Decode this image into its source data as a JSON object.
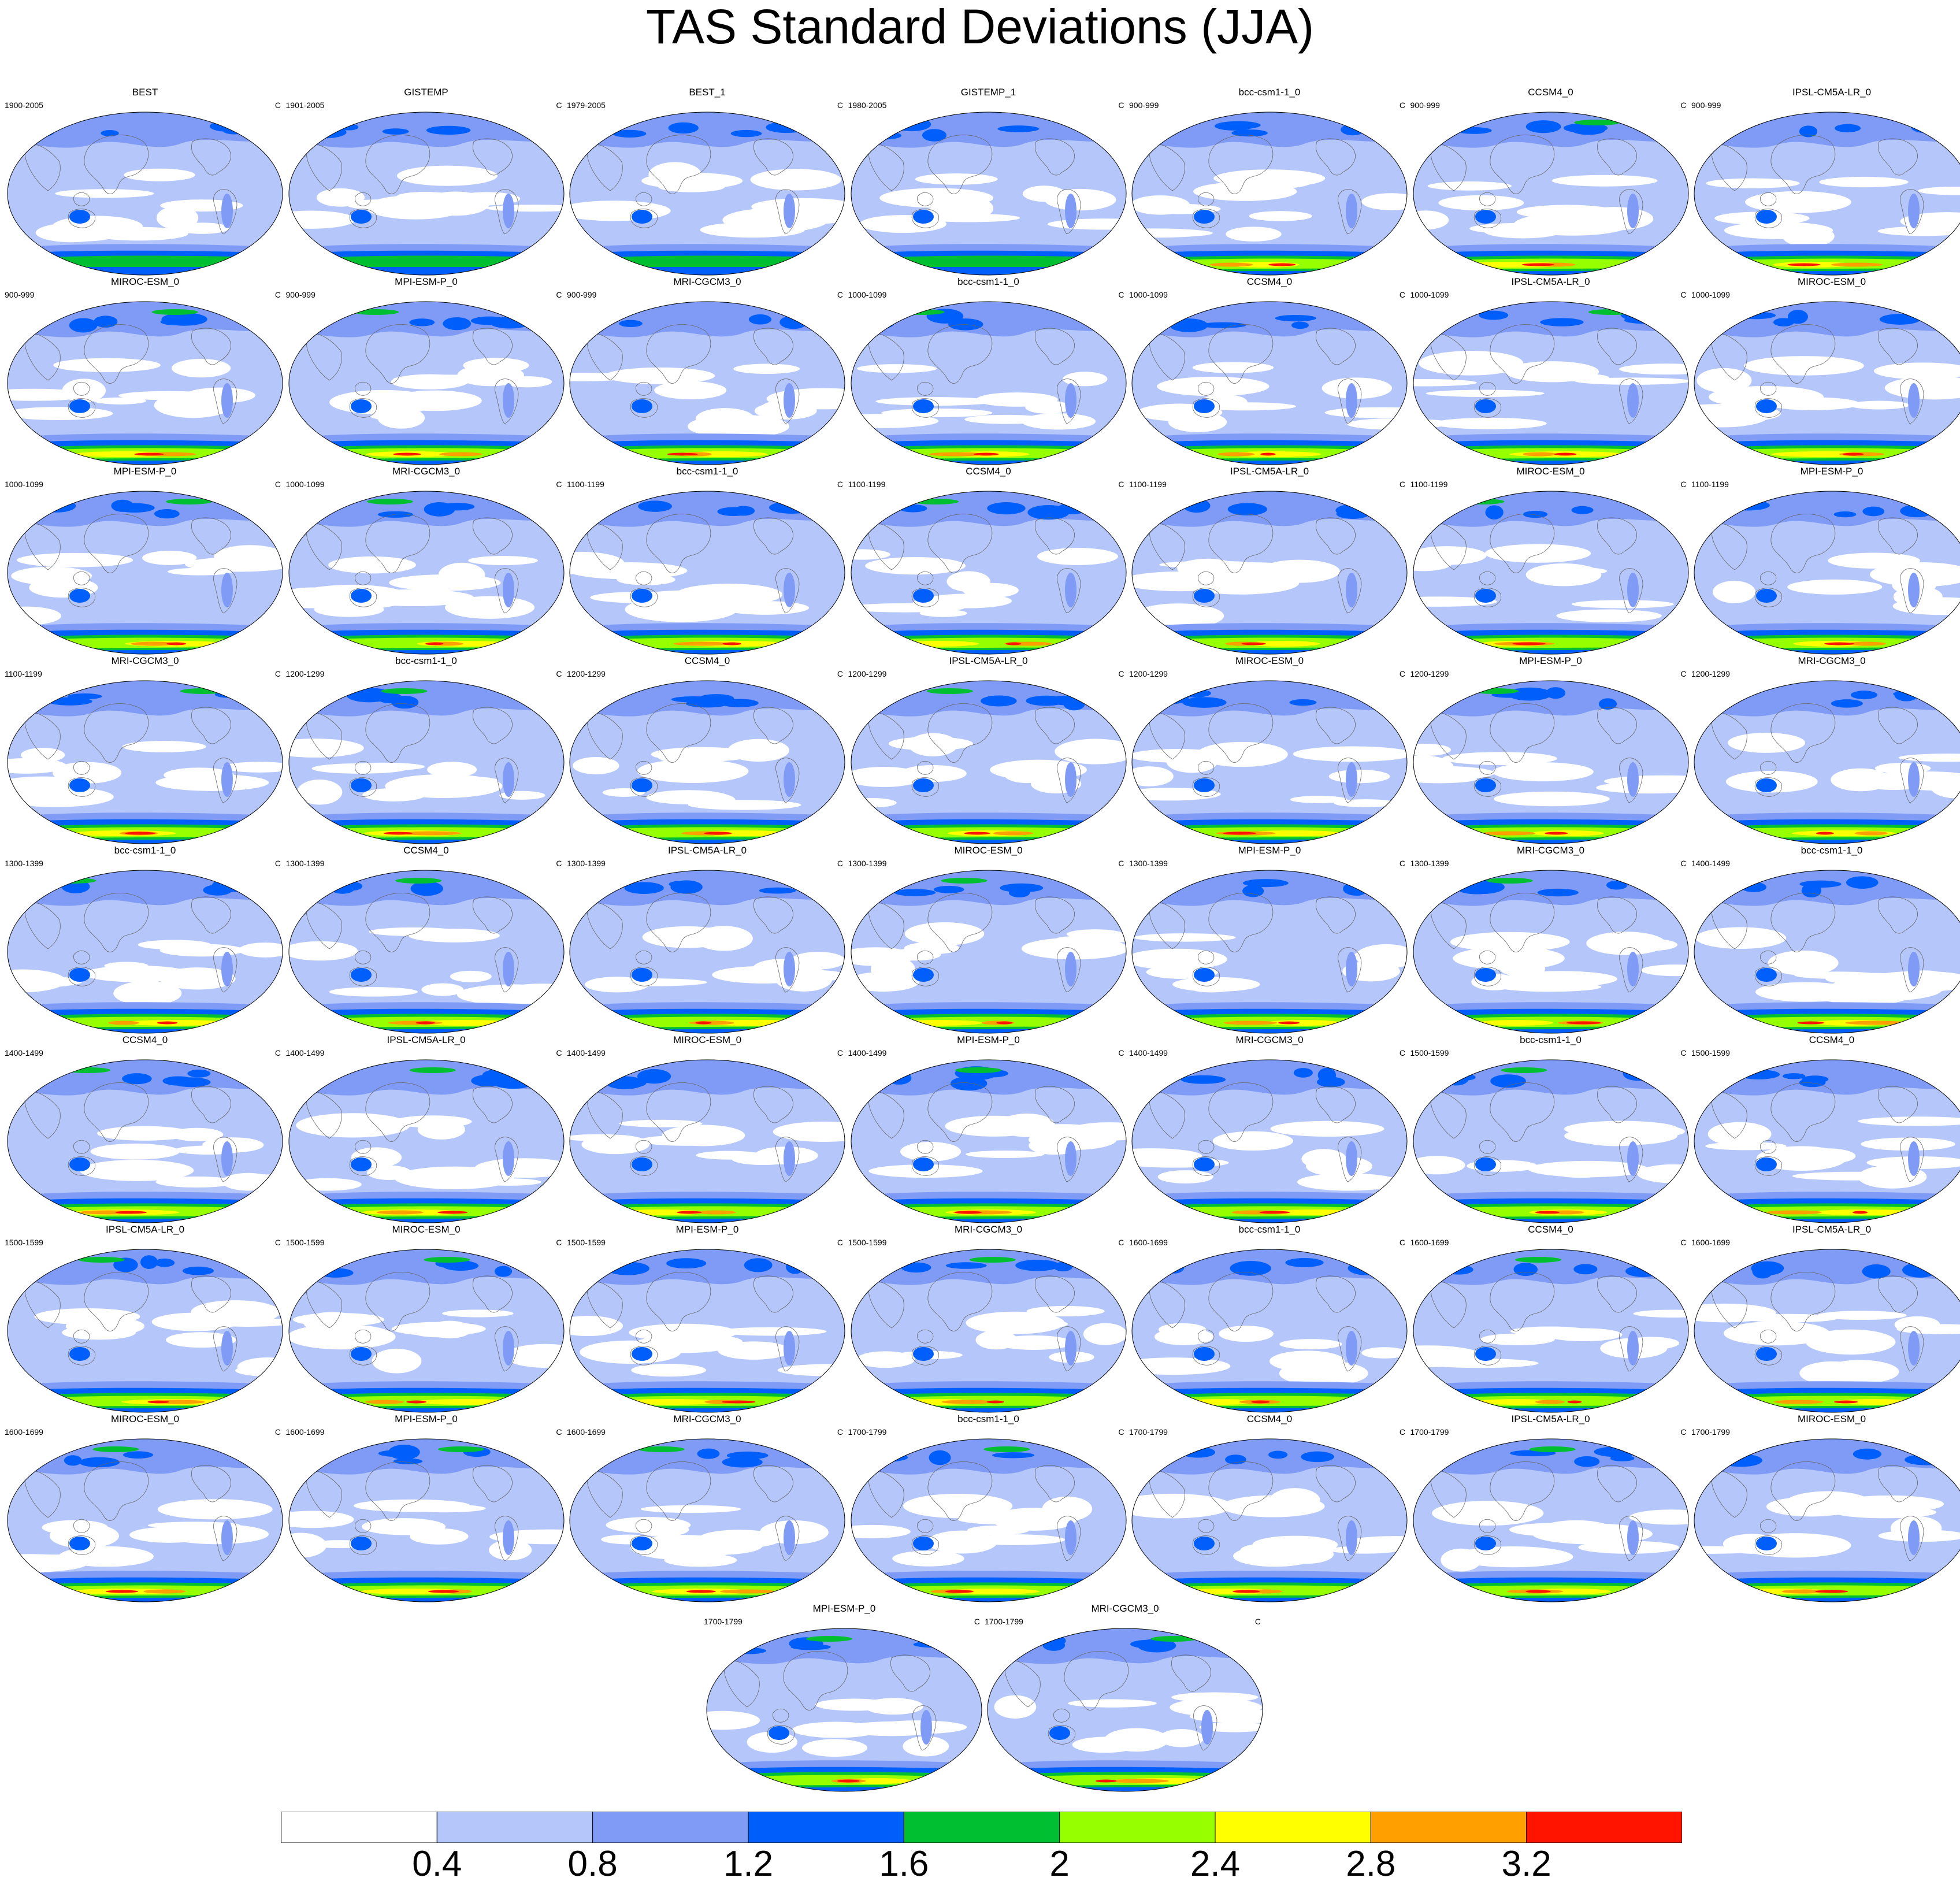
{
  "title": "TAS Standard Deviations (JJA)",
  "units_label": "C",
  "panels": [
    {
      "name": "BEST",
      "period": "1900-2005"
    },
    {
      "name": "GISTEMP",
      "period": "1901-2005"
    },
    {
      "name": "BEST_1",
      "period": "1979-2005"
    },
    {
      "name": "GISTEMP_1",
      "period": "1980-2005"
    },
    {
      "name": "bcc-csm1-1_0",
      "period": "900-999"
    },
    {
      "name": "CCSM4_0",
      "period": "900-999"
    },
    {
      "name": "IPSL-CM5A-LR_0",
      "period": "900-999"
    },
    {
      "name": "MIROC-ESM_0",
      "period": "900-999"
    },
    {
      "name": "MPI-ESM-P_0",
      "period": "900-999"
    },
    {
      "name": "MRI-CGCM3_0",
      "period": "900-999"
    },
    {
      "name": "bcc-csm1-1_0",
      "period": "1000-1099"
    },
    {
      "name": "CCSM4_0",
      "period": "1000-1099"
    },
    {
      "name": "IPSL-CM5A-LR_0",
      "period": "1000-1099"
    },
    {
      "name": "MIROC-ESM_0",
      "period": "1000-1099"
    },
    {
      "name": "MPI-ESM-P_0",
      "period": "1000-1099"
    },
    {
      "name": "MRI-CGCM3_0",
      "period": "1000-1099"
    },
    {
      "name": "bcc-csm1-1_0",
      "period": "1100-1199"
    },
    {
      "name": "CCSM4_0",
      "period": "1100-1199"
    },
    {
      "name": "IPSL-CM5A-LR_0",
      "period": "1100-1199"
    },
    {
      "name": "MIROC-ESM_0",
      "period": "1100-1199"
    },
    {
      "name": "MPI-ESM-P_0",
      "period": "1100-1199"
    },
    {
      "name": "MRI-CGCM3_0",
      "period": "1100-1199"
    },
    {
      "name": "bcc-csm1-1_0",
      "period": "1200-1299"
    },
    {
      "name": "CCSM4_0",
      "period": "1200-1299"
    },
    {
      "name": "IPSL-CM5A-LR_0",
      "period": "1200-1299"
    },
    {
      "name": "MIROC-ESM_0",
      "period": "1200-1299"
    },
    {
      "name": "MPI-ESM-P_0",
      "period": "1200-1299"
    },
    {
      "name": "MRI-CGCM3_0",
      "period": "1200-1299"
    },
    {
      "name": "bcc-csm1-1_0",
      "period": "1300-1399"
    },
    {
      "name": "CCSM4_0",
      "period": "1300-1399"
    },
    {
      "name": "IPSL-CM5A-LR_0",
      "period": "1300-1399"
    },
    {
      "name": "MIROC-ESM_0",
      "period": "1300-1399"
    },
    {
      "name": "MPI-ESM-P_0",
      "period": "1300-1399"
    },
    {
      "name": "MRI-CGCM3_0",
      "period": "1300-1399"
    },
    {
      "name": "bcc-csm1-1_0",
      "period": "1400-1499"
    },
    {
      "name": "CCSM4_0",
      "period": "1400-1499"
    },
    {
      "name": "IPSL-CM5A-LR_0",
      "period": "1400-1499"
    },
    {
      "name": "MIROC-ESM_0",
      "period": "1400-1499"
    },
    {
      "name": "MPI-ESM-P_0",
      "period": "1400-1499"
    },
    {
      "name": "MRI-CGCM3_0",
      "period": "1400-1499"
    },
    {
      "name": "bcc-csm1-1_0",
      "period": "1500-1599"
    },
    {
      "name": "CCSM4_0",
      "period": "1500-1599"
    },
    {
      "name": "IPSL-CM5A-LR_0",
      "period": "1500-1599"
    },
    {
      "name": "MIROC-ESM_0",
      "period": "1500-1599"
    },
    {
      "name": "MPI-ESM-P_0",
      "period": "1500-1599"
    },
    {
      "name": "MRI-CGCM3_0",
      "period": "1500-1599"
    },
    {
      "name": "bcc-csm1-1_0",
      "period": "1600-1699"
    },
    {
      "name": "CCSM4_0",
      "period": "1600-1699"
    },
    {
      "name": "IPSL-CM5A-LR_0",
      "period": "1600-1699"
    },
    {
      "name": "MIROC-ESM_0",
      "period": "1600-1699"
    },
    {
      "name": "MPI-ESM-P_0",
      "period": "1600-1699"
    },
    {
      "name": "MRI-CGCM3_0",
      "period": "1600-1699"
    },
    {
      "name": "bcc-csm1-1_0",
      "period": "1700-1799"
    },
    {
      "name": "CCSM4_0",
      "period": "1700-1799"
    },
    {
      "name": "IPSL-CM5A-LR_0",
      "period": "1700-1799"
    },
    {
      "name": "MIROC-ESM_0",
      "period": "1700-1799"
    },
    {
      "name": "MPI-ESM-P_0",
      "period": "1700-1799"
    },
    {
      "name": "MRI-CGCM3_0",
      "period": "1700-1799"
    }
  ],
  "colorbar": {
    "colors": [
      "#ffffff",
      "#b4c6fa",
      "#7f9bf5",
      "#005ffa",
      "#00c032",
      "#96ff00",
      "#ffff00",
      "#ffa000",
      "#ff1400"
    ],
    "labels": [
      "0.4",
      "0.8",
      "1.2",
      "1.6",
      "2",
      "2.4",
      "2.8",
      "3.2"
    ]
  }
}
